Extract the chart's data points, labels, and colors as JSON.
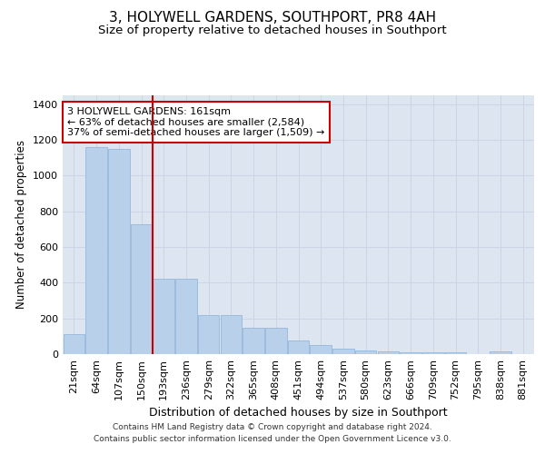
{
  "title": "3, HOLYWELL GARDENS, SOUTHPORT, PR8 4AH",
  "subtitle": "Size of property relative to detached houses in Southport",
  "xlabel": "Distribution of detached houses by size in Southport",
  "ylabel": "Number of detached properties",
  "categories": [
    "21sqm",
    "64sqm",
    "107sqm",
    "150sqm",
    "193sqm",
    "236sqm",
    "279sqm",
    "322sqm",
    "365sqm",
    "408sqm",
    "451sqm",
    "494sqm",
    "537sqm",
    "580sqm",
    "623sqm",
    "666sqm",
    "709sqm",
    "752sqm",
    "795sqm",
    "838sqm",
    "881sqm"
  ],
  "values": [
    110,
    1160,
    1150,
    730,
    420,
    420,
    220,
    220,
    150,
    150,
    75,
    50,
    30,
    20,
    15,
    10,
    10,
    10,
    0,
    15,
    0
  ],
  "bar_color": "#b8d0ea",
  "bar_edge_color": "#8ab0d8",
  "grid_color": "#ccd5e5",
  "background_color": "#dce5f0",
  "vline_color": "#cc0000",
  "annotation_text": "3 HOLYWELL GARDENS: 161sqm\n← 63% of detached houses are smaller (2,584)\n37% of semi-detached houses are larger (1,509) →",
  "annotation_box_facecolor": "#ffffff",
  "annotation_border_color": "#cc0000",
  "ylim": [
    0,
    1450
  ],
  "yticks": [
    0,
    200,
    400,
    600,
    800,
    1000,
    1200,
    1400
  ],
  "footer_text": "Contains HM Land Registry data © Crown copyright and database right 2024.\nContains public sector information licensed under the Open Government Licence v3.0.",
  "title_fontsize": 11,
  "subtitle_fontsize": 9.5,
  "xlabel_fontsize": 9,
  "ylabel_fontsize": 8.5,
  "tick_fontsize": 8,
  "annotation_fontsize": 8,
  "footer_fontsize": 6.5
}
